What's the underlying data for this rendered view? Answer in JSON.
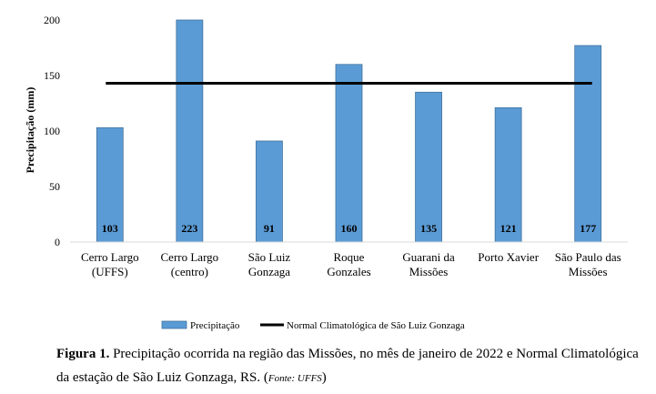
{
  "chart_data": {
    "type": "bar",
    "categories": [
      [
        "Cerro Largo",
        "(UFFS)"
      ],
      [
        "Cerro Largo",
        "(centro)"
      ],
      [
        "São Luiz",
        "Gonzaga"
      ],
      [
        "Roque",
        "Gonzales"
      ],
      [
        "Guarani da",
        "Missões"
      ],
      [
        "Porto Xavier"
      ],
      [
        "São Paulo das",
        "Missões"
      ]
    ],
    "series": [
      {
        "name": "Precipitação",
        "values": [
          103,
          223,
          91,
          160,
          135,
          121,
          177
        ],
        "color": "#5b9bd5"
      }
    ],
    "data_labels": [
      "103",
      "223",
      "91",
      "160",
      "135",
      "121",
      "177"
    ],
    "reference_line": {
      "name": "Normal Climatológica de São Luiz Gonzaga",
      "value": 143,
      "color": "#000000"
    },
    "ylabel": "Precipitação  (mm)",
    "xlabel": "",
    "ylim": [
      0,
      200
    ],
    "yticks": [
      "0",
      "50",
      "100",
      "150",
      "200"
    ],
    "grid": false,
    "legend_position": "bottom"
  },
  "caption": {
    "label": "Figura 1.",
    "text": " Precipitação ocorrida na região das Missões, no mês de janeiro de 2022 e Normal Climatológica da estação de São Luiz Gonzaga, RS. (",
    "source": "Fonte: UFFS",
    "close": ")"
  }
}
